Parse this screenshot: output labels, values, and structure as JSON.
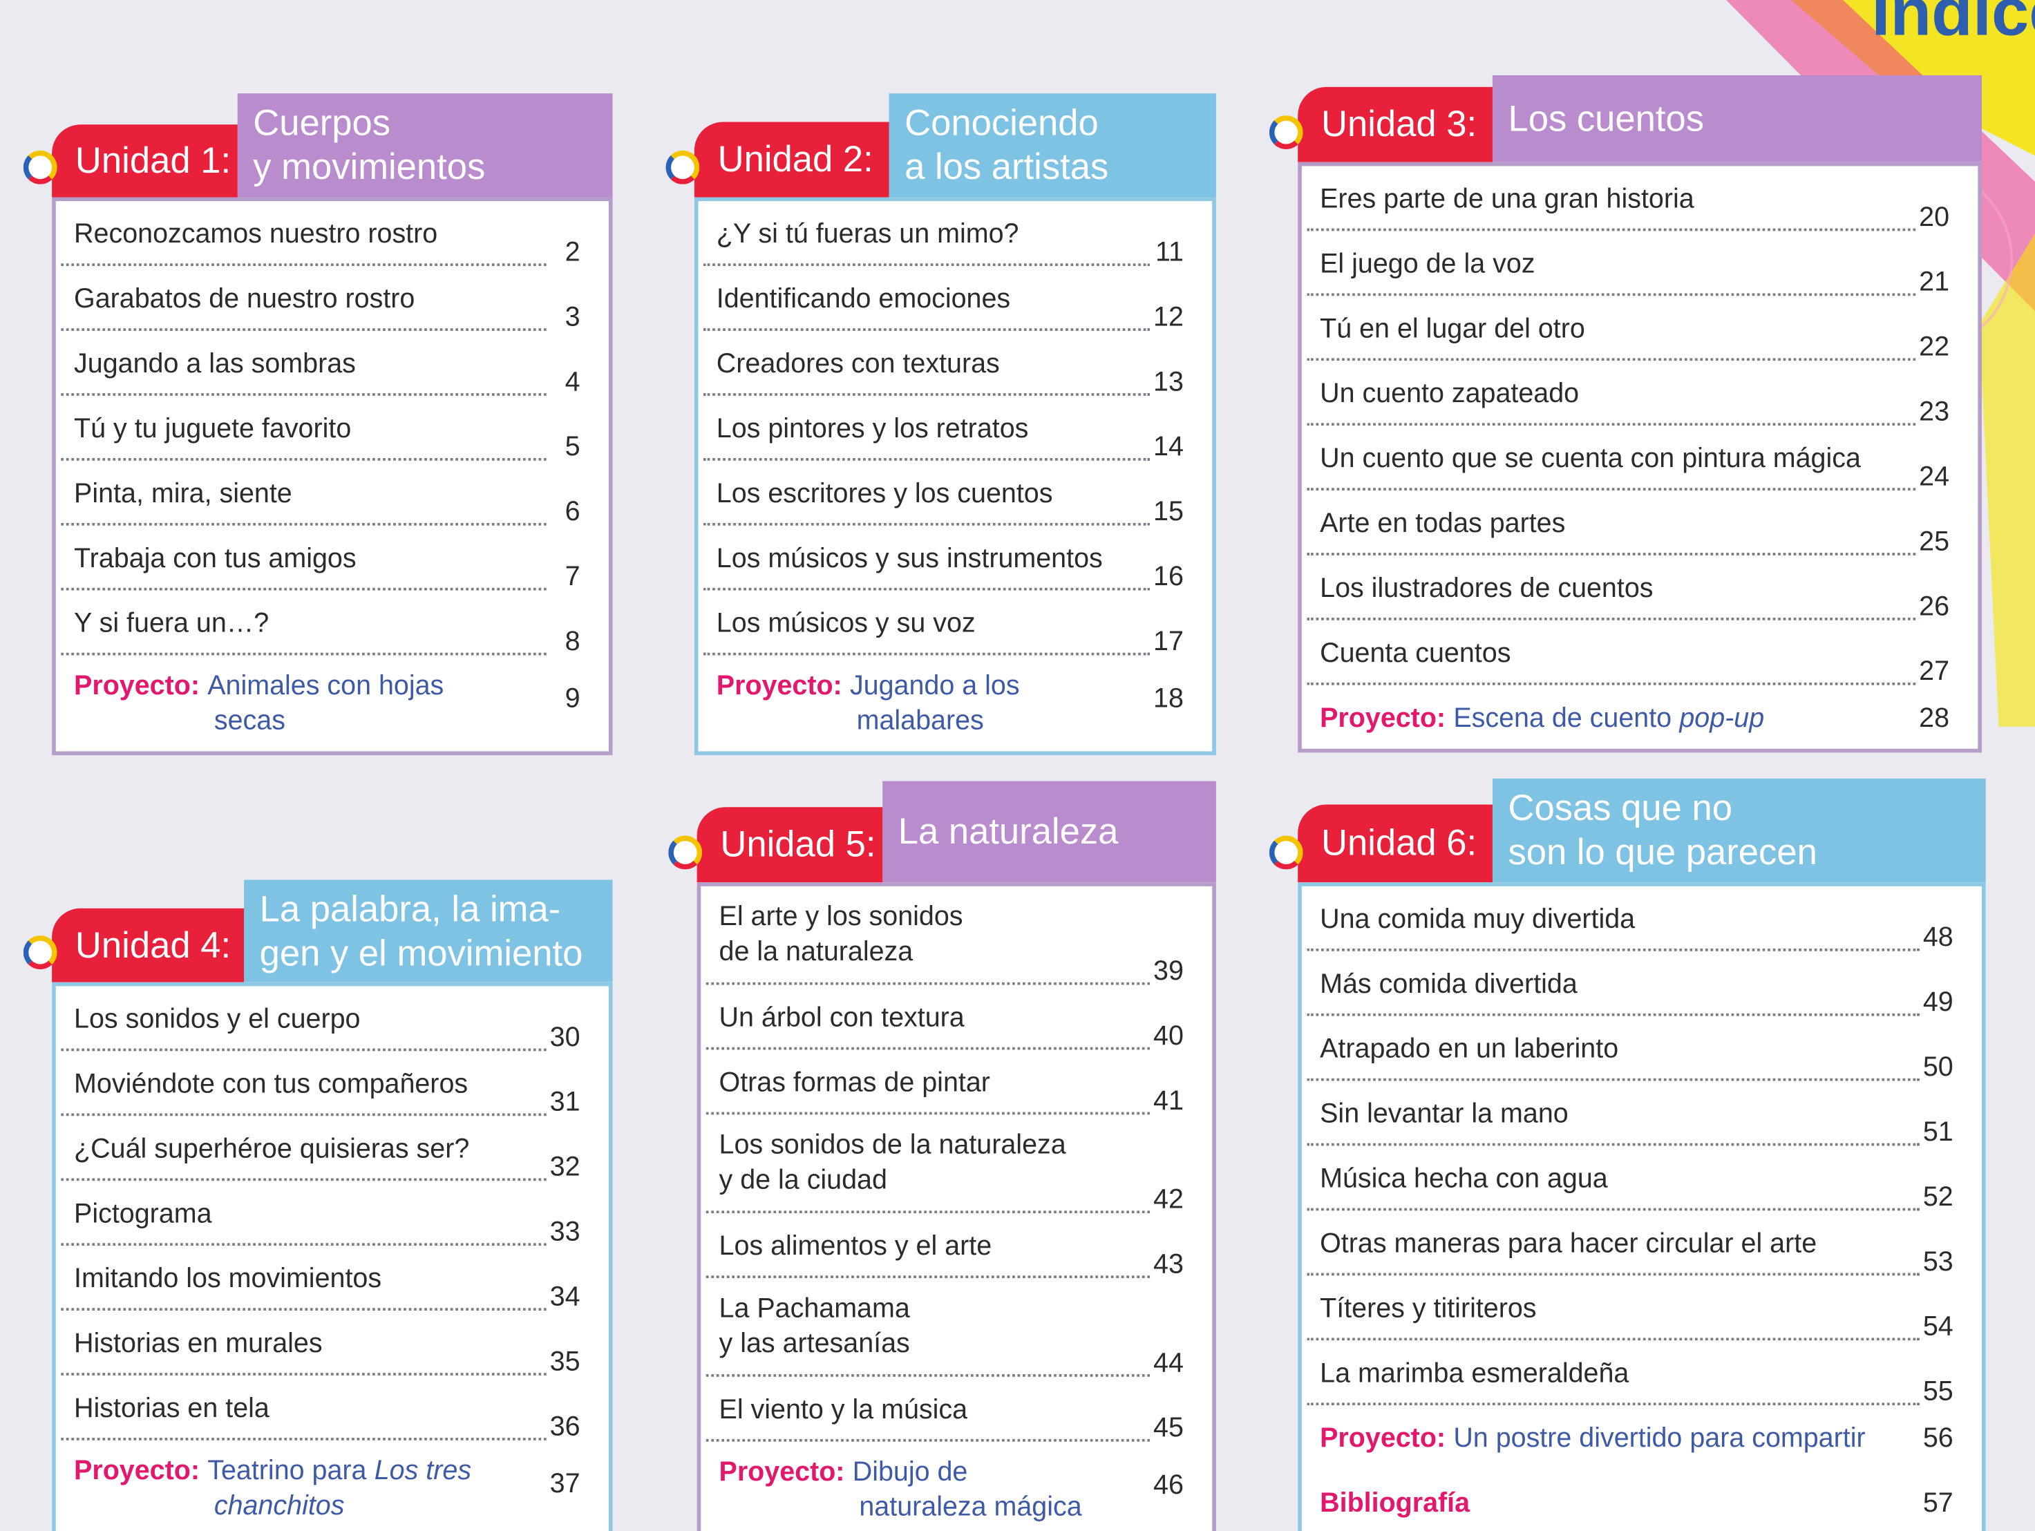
{
  "header": {
    "title": "Índice"
  },
  "units": [
    {
      "label": "Unidad 1:",
      "title": [
        "Cuerpos",
        "y movimientos"
      ],
      "entries": [
        {
          "text": "Reconozcamos nuestro rostro",
          "page": "2"
        },
        {
          "text": "Garabatos de nuestro rostro",
          "page": "3"
        },
        {
          "text": "Jugando a las sombras",
          "page": "4"
        },
        {
          "text": "Tú y tu juguete favorito",
          "page": "5"
        },
        {
          "text": "Pinta, mira, siente",
          "page": "6"
        },
        {
          "text": "Trabaja con tus amigos",
          "page": "7"
        },
        {
          "text": "Y si fuera un…?",
          "page": "8"
        },
        {
          "label": "Proyecto:",
          "lines": [
            [
              {
                "text": "Animales con hojas"
              }
            ],
            [
              {
                "text": "secas"
              }
            ]
          ],
          "page": "9"
        }
      ]
    },
    {
      "label": "Unidad 2:",
      "title": [
        "Conociendo",
        "a los artistas"
      ],
      "entries": [
        {
          "text": "¿Y si tú fueras un mimo?",
          "page": "11"
        },
        {
          "text": "Identificando emociones",
          "page": "12"
        },
        {
          "text": "Creadores con texturas",
          "page": "13"
        },
        {
          "text": "Los pintores y los retratos",
          "page": "14"
        },
        {
          "text": "Los escritores y los cuentos",
          "page": "15"
        },
        {
          "text": "Los músicos y sus instrumentos",
          "page": "16"
        },
        {
          "text": "Los músicos y su voz",
          "page": "17"
        },
        {
          "label": "Proyecto:",
          "lines": [
            [
              {
                "text": "Jugando a los"
              }
            ],
            [
              {
                "text": "malabares"
              }
            ]
          ],
          "page": "18"
        }
      ]
    },
    {
      "label": "Unidad 3:",
      "title": [
        "Los cuentos"
      ],
      "entries": [
        {
          "text": "Eres parte de una gran historia",
          "page": "20"
        },
        {
          "text": "El juego de la voz",
          "page": "21"
        },
        {
          "text": "Tú en el lugar del otro",
          "page": "22"
        },
        {
          "text": "Un cuento zapateado",
          "page": "23"
        },
        {
          "text": "Un cuento que se cuenta con pintura mágica",
          "page": "24"
        },
        {
          "text": "Arte en todas partes",
          "page": "25"
        },
        {
          "text": "Los ilustradores de cuentos",
          "page": "26"
        },
        {
          "text": "Cuenta cuentos",
          "page": "27"
        },
        {
          "label": "Proyecto:",
          "lines": [
            [
              {
                "text": "Escena de cuento"
              },
              {
                "text": "pop-up",
                "italic": true
              }
            ]
          ],
          "page": "28"
        }
      ]
    },
    {
      "label": "Unidad 4:",
      "title": [
        "La palabra, la ima-",
        "gen y el movimiento"
      ],
      "entries": [
        {
          "text": "Los sonidos y el cuerpo",
          "page": "30"
        },
        {
          "text": "Moviéndote con tus compañeros",
          "page": "31"
        },
        {
          "text": "¿Cuál superhéroe quisieras ser?",
          "page": "32"
        },
        {
          "text": "Pictograma",
          "page": "33"
        },
        {
          "text": "Imitando los movimientos",
          "page": "34"
        },
        {
          "text": "Historias en murales",
          "page": "35"
        },
        {
          "text": "Historias en tela",
          "page": "36"
        },
        {
          "label": "Proyecto:",
          "lines": [
            [
              {
                "text": "Teatrino para"
              },
              {
                "text": "Los tres",
                "italic": true
              }
            ],
            [
              {
                "text": "chanchitos",
                "italic": true
              }
            ]
          ],
          "page": "37"
        }
      ]
    },
    {
      "label": "Unidad 5:",
      "title": [
        "La naturaleza"
      ],
      "entries": [
        {
          "lines": [
            [
              {
                "text": "El arte y los sonidos"
              }
            ],
            [
              {
                "text": "de la naturaleza"
              }
            ]
          ],
          "page": "39"
        },
        {
          "text": "Un árbol con textura",
          "page": "40"
        },
        {
          "text": "Otras formas de pintar",
          "page": "41"
        },
        {
          "lines": [
            [
              {
                "text": "Los sonidos de la naturaleza"
              }
            ],
            [
              {
                "text": "y de la ciudad"
              }
            ]
          ],
          "page": "42"
        },
        {
          "text": "Los alimentos y el arte",
          "page": "43"
        },
        {
          "lines": [
            [
              {
                "text": "La Pachamama"
              }
            ],
            [
              {
                "text": "y las artesanías"
              }
            ]
          ],
          "page": "44"
        },
        {
          "text": "El viento y la música",
          "page": "45"
        },
        {
          "label": "Proyecto:",
          "lines": [
            [
              {
                "text": "Dibujo de"
              }
            ],
            [
              {
                "text": "naturaleza mágica"
              }
            ]
          ],
          "page": "46"
        }
      ]
    },
    {
      "label": "Unidad 6:",
      "title": [
        "Cosas que no",
        "son lo que parecen"
      ],
      "entries": [
        {
          "text": "Una comida muy divertida",
          "page": "48"
        },
        {
          "text": "Más comida divertida",
          "page": "49"
        },
        {
          "text": "Atrapado en un laberinto",
          "page": "50"
        },
        {
          "text": "Sin levantar la mano",
          "page": "51"
        },
        {
          "text": "Música hecha con agua",
          "page": "52"
        },
        {
          "text": "Otras maneras para hacer circular el arte",
          "page": "53"
        },
        {
          "text": "Títeres y titiriteros",
          "page": "54"
        },
        {
          "text": "La marimba esmeraldeña",
          "page": "55"
        },
        {
          "label": "Proyecto:",
          "lines": [
            [
              {
                "text": "Un postre divertido para compartir"
              }
            ]
          ],
          "page": "56"
        },
        {
          "label": "Bibliografía",
          "page": "57"
        }
      ]
    }
  ]
}
